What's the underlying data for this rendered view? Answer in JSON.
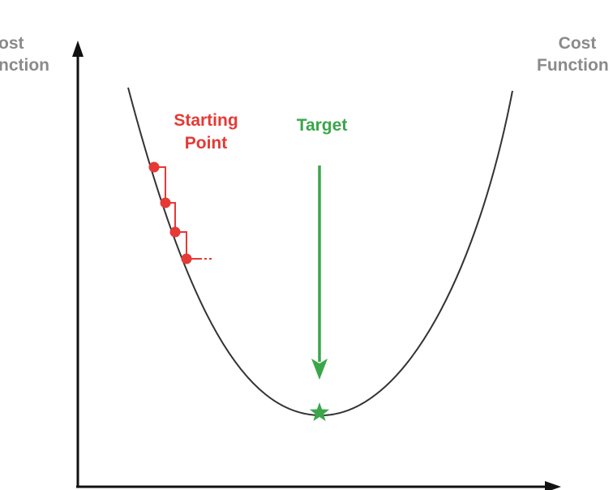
{
  "labels": {
    "cost_left_line1": "ost",
    "cost_left_line2": "nction",
    "cost_right_line1": "Cost",
    "cost_right_line2": "Function",
    "starting_line1": "Starting",
    "starting_line2": "Point",
    "target": "Target"
  },
  "colors": {
    "axis": "#111111",
    "curve": "#333333",
    "axis_label": "#8a8a8a",
    "start": "#e53935",
    "target": "#3aa64a"
  },
  "icons": {
    "minimum_marker": "star-icon",
    "gradient_step": "dot-icon",
    "target_pointer": "arrow-down-icon"
  }
}
